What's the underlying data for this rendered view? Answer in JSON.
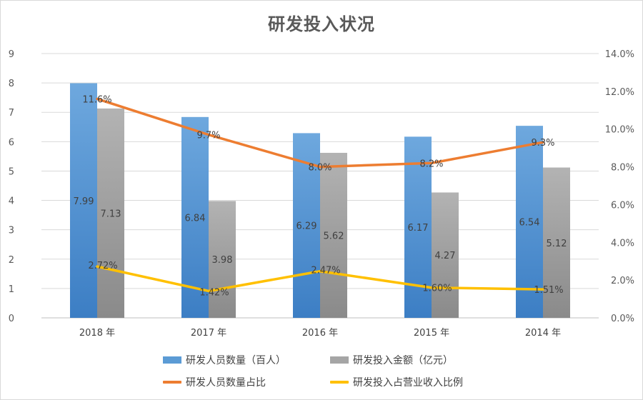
{
  "chart_data": {
    "type": "bar",
    "title": "研发投入状况",
    "categories": [
      "2018 年",
      "2017 年",
      "2016 年",
      "2015 年",
      "2014 年"
    ],
    "y_left": {
      "min": 0,
      "max": 9,
      "ticks": [
        "0",
        "1",
        "2",
        "3",
        "4",
        "5",
        "6",
        "7",
        "8",
        "9"
      ]
    },
    "y_right": {
      "min": 0,
      "max": 14,
      "ticks": [
        "0.0%",
        "2.0%",
        "4.0%",
        "6.0%",
        "8.0%",
        "10.0%",
        "12.0%",
        "14.0%"
      ]
    },
    "grid": true,
    "legend_position": "bottom",
    "bar_series": [
      {
        "name": "研发人员数量（百人）",
        "color": "#5b9bd5",
        "values": [
          7.99,
          6.84,
          6.29,
          6.17,
          6.54
        ],
        "labels": [
          "7.99",
          "6.84",
          "6.29",
          "6.17",
          "6.54"
        ]
      },
      {
        "name": "研发投入金额（亿元）",
        "color": "#a5a5a5",
        "values": [
          7.13,
          3.98,
          5.62,
          4.27,
          5.12
        ],
        "labels": [
          "7.13",
          "3.98",
          "5.62",
          "4.27",
          "5.12"
        ]
      }
    ],
    "line_series": [
      {
        "name": "研发人员数量占比",
        "color": "#ed7d31",
        "axis": "right",
        "values": [
          11.6,
          9.7,
          8.0,
          8.2,
          9.3
        ],
        "labels": [
          "11.6%",
          "9.7%",
          "8.0%",
          "8.2%",
          "9.3%"
        ]
      },
      {
        "name": "研发投入占营业收入比例",
        "color": "#ffc000",
        "axis": "right",
        "values": [
          2.72,
          1.42,
          2.47,
          1.6,
          1.51
        ],
        "labels": [
          "2.72%",
          "1.42%",
          "2.47%",
          "1.60%",
          "1.51%"
        ]
      }
    ]
  }
}
